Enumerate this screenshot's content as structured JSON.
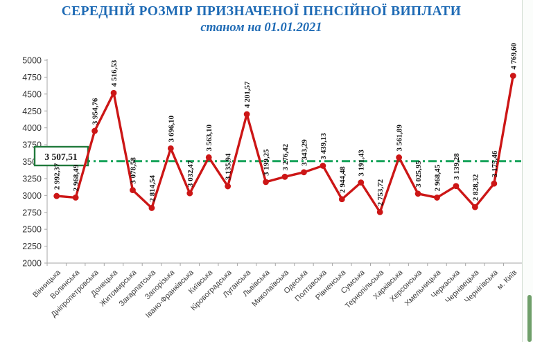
{
  "page": {
    "scrollbar": {
      "thumb_color": "#6f9f6a",
      "edge_color": "#d2ddd2"
    }
  },
  "chart_data": {
    "type": "line",
    "title": "СЕРЕДНІЙ РОЗМІР ПРИЗНАЧЕНОЇ ПЕНСІЙНОЇ ВИПЛАТИ",
    "subtitle": "станом на 01.01.2021",
    "title_color": "#1f6bb5",
    "categories": [
      "Вінницька",
      "Волинська",
      "Дніпропетровська",
      "Донецька",
      "Житомирська",
      "Закарпатська",
      "Запорізька",
      "Івано-Франківська",
      "Київська",
      "Кіровоградська",
      "Луганська",
      "Львівська",
      "Миколаївська",
      "Одеська",
      "Полтавська",
      "Рівненська",
      "Сумська",
      "Тернопільська",
      "Харківська",
      "Херсонська",
      "Хмельницька",
      "Черкаська",
      "Чернівецька",
      "Чернігівська",
      "м. Київ"
    ],
    "values": [
      2992.37,
      2968.49,
      3954.76,
      4516.53,
      3078.58,
      2814.54,
      3696.1,
      3032.47,
      3563.1,
      3135.94,
      4201.57,
      3199.25,
      3276.42,
      3343.29,
      3439.13,
      2944.48,
      3191.43,
      2753.72,
      3561.89,
      3025.95,
      2968.45,
      3139.28,
      2828.32,
      3175.46,
      4769.6
    ],
    "point_labels": [
      "2 992,37",
      "2 968,49",
      "3 954,76",
      "4 516,53",
      "3 078,58",
      "2 814,54",
      "3 696,10",
      "3 032,47",
      "3 563,10",
      "3 135,94",
      "4 201,57",
      "3 199,25",
      "3 276,42",
      "3 343,29",
      "3 439,13",
      "2 944,48",
      "3 191,43",
      "2 753,72",
      "3 561,89",
      "3 025,95",
      "2 968,45",
      "3 139,28",
      "2 828,32",
      "3 175,46",
      "4 769,60"
    ],
    "series_color": "#cc1616",
    "average_line": {
      "value": 3507.51,
      "label": "3 507,51",
      "line_color": "#17a35a",
      "box_border_color": "#217a3c"
    },
    "y_axis": {
      "min": 2000,
      "max": 5000,
      "step": 250,
      "tick_labels": [
        "2000",
        "2250",
        "2500",
        "2750",
        "3000",
        "3250",
        "3500",
        "3750",
        "4000",
        "4250",
        "4500",
        "4750",
        "5000"
      ]
    },
    "grid": false,
    "legend": false,
    "axis_color": "#a6a6a6",
    "x_label_color": "#404040",
    "y_label_color": "#333333",
    "data_label_color": "#111111"
  }
}
